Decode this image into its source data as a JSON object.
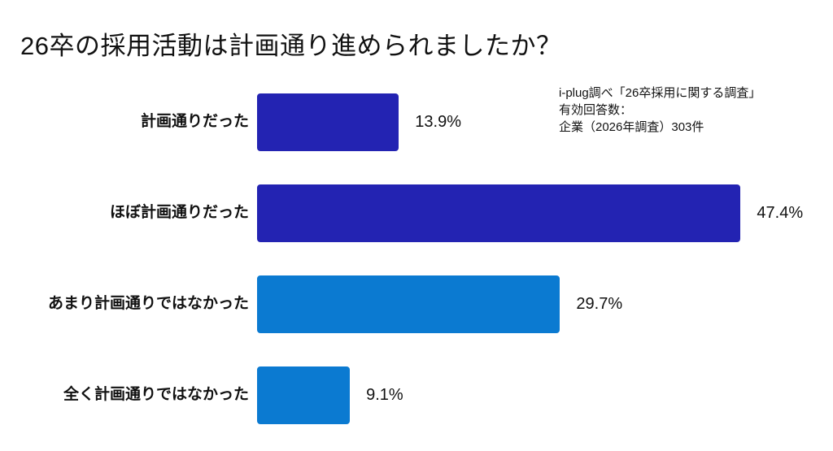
{
  "page": {
    "background": "#ffffff",
    "text_color": "#111111"
  },
  "chart_data": {
    "type": "bar",
    "orientation": "horizontal",
    "title": "26卒の採用活動は計画通り進められましたか？",
    "categories": [
      "計画通りだった",
      "ほぼ計画通りだった",
      "あまり計画通りではなかった",
      "全く計画通りではなかった"
    ],
    "values": [
      13.9,
      47.4,
      29.7,
      9.1
    ],
    "value_labels": [
      "13.9%",
      "47.4%",
      "29.7%",
      "9.1%"
    ],
    "bar_colors": [
      "#2323B2",
      "#2323B2",
      "#0B7AD1",
      "#0B7AD1"
    ],
    "colors": {
      "dark_blue": "#2323B2",
      "light_blue": "#0B7AD1"
    },
    "xlim": [
      0,
      50
    ],
    "grid": false,
    "legend": false,
    "xlabel": "",
    "ylabel": "",
    "annotation": {
      "lines": [
        "i-plug調べ「26卒採用に関する調査」",
        "有効回答数：",
        "企業（2026年調査）303件"
      ]
    }
  }
}
